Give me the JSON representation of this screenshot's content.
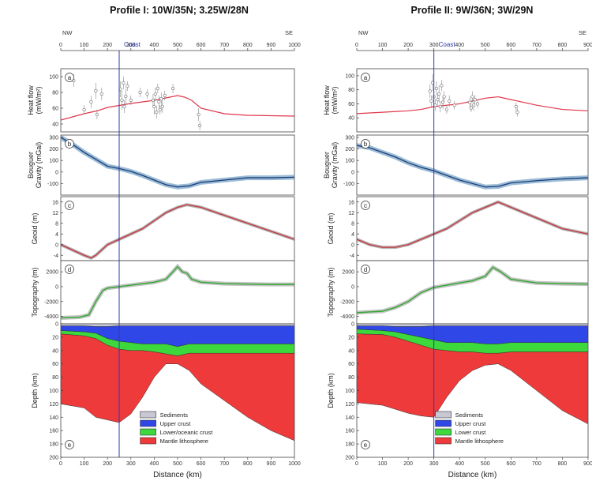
{
  "figure": {
    "colors": {
      "heat_model": "#e0364a",
      "obs": "#6b6b6b",
      "gravity_model": "#1f3d78",
      "gravity_band": "#6fa0c4",
      "geoid_model": "#c8323c",
      "topo_model": "#2ea82e",
      "coast": "#2f3aa8",
      "sediments": "#c8c8d4",
      "upper_crust": "#3047e8",
      "lower_crust": "#3cd83c",
      "mantle": "#ee3a3a"
    },
    "panel_letters": [
      "a",
      "b",
      "c",
      "d",
      "e"
    ],
    "y_labels": {
      "heat": "Heat flow\n(mW/m²)",
      "gravity": "Bouguer\nGravity (mGal)",
      "geoid": "Geoid (m)",
      "topo": "Topography (m)",
      "depth": "Depth (km)"
    },
    "x_label": "Distance (km)",
    "coast_label": "Coast"
  },
  "chart_data": [
    {
      "type": "line",
      "title": "Profile I: 10W/35N; 3.25W/28N",
      "dir_left": "NW",
      "dir_right": "SE",
      "xlim": [
        0,
        1000
      ],
      "x_ticks": [
        0,
        100,
        200,
        300,
        400,
        500,
        600,
        700,
        800,
        900,
        1000
      ],
      "coast_x": 250,
      "heat": {
        "ylim": [
          30,
          110
        ],
        "ticks": [
          40,
          60,
          80,
          100
        ],
        "model_x": [
          0,
          100,
          160,
          200,
          260,
          300,
          350,
          400,
          450,
          500,
          530,
          560,
          600,
          700,
          800,
          1000
        ],
        "model_y": [
          45,
          53,
          57,
          61,
          64,
          66,
          68,
          70,
          73,
          76,
          74,
          70,
          60,
          53,
          51,
          50
        ],
        "obs": [
          [
            55,
            95,
            8
          ],
          [
            100,
            58,
            6
          ],
          [
            130,
            68,
            8
          ],
          [
            150,
            82,
            10
          ],
          [
            155,
            52,
            6
          ],
          [
            175,
            78,
            8
          ],
          [
            255,
            84,
            10
          ],
          [
            262,
            70,
            12
          ],
          [
            268,
            92,
            8
          ],
          [
            272,
            62,
            8
          ],
          [
            278,
            75,
            10
          ],
          [
            285,
            88,
            6
          ],
          [
            300,
            70,
            6
          ],
          [
            340,
            80,
            6
          ],
          [
            370,
            78,
            6
          ],
          [
            395,
            70,
            8
          ],
          [
            400,
            62,
            10
          ],
          [
            405,
            78,
            8
          ],
          [
            410,
            55,
            8
          ],
          [
            415,
            85,
            6
          ],
          [
            420,
            68,
            8
          ],
          [
            425,
            58,
            6
          ],
          [
            430,
            72,
            8
          ],
          [
            435,
            62,
            8
          ],
          [
            445,
            76,
            6
          ],
          [
            480,
            85,
            6
          ],
          [
            590,
            52,
            8
          ],
          [
            595,
            38,
            6
          ]
        ]
      },
      "gravity": {
        "ylim": [
          -200,
          320
        ],
        "ticks": [
          -100,
          0,
          100,
          200,
          300
        ],
        "model_x": [
          0,
          50,
          100,
          150,
          200,
          250,
          300,
          350,
          400,
          450,
          500,
          550,
          600,
          700,
          800,
          900,
          1000
        ],
        "model_y": [
          300,
          240,
          170,
          110,
          50,
          30,
          5,
          -30,
          -70,
          -110,
          -130,
          -120,
          -90,
          -70,
          -50,
          -50,
          -45
        ]
      },
      "geoid": {
        "ylim": [
          -6,
          18
        ],
        "ticks": [
          -4,
          0,
          4,
          8,
          12,
          16
        ],
        "model_x": [
          0,
          50,
          100,
          130,
          150,
          200,
          250,
          300,
          350,
          400,
          450,
          500,
          540,
          600,
          700,
          800,
          900,
          1000
        ],
        "model_y": [
          0,
          -2,
          -4,
          -5,
          -4,
          0,
          2,
          4,
          6,
          9,
          12,
          14,
          15,
          14,
          11,
          8,
          5,
          2
        ]
      },
      "topo": {
        "ylim": [
          -5000,
          3500
        ],
        "ticks": [
          -4000,
          -2000,
          0,
          2000
        ],
        "model_x": [
          0,
          80,
          120,
          150,
          180,
          200,
          250,
          300,
          350,
          400,
          450,
          480,
          500,
          520,
          540,
          560,
          600,
          700,
          800,
          900,
          1000
        ],
        "model_y": [
          -4200,
          -4100,
          -3800,
          -2000,
          -500,
          -200,
          0,
          200,
          400,
          600,
          1000,
          2000,
          2700,
          2000,
          1800,
          1000,
          600,
          400,
          350,
          300,
          300
        ]
      },
      "depth": {
        "ylim": [
          200,
          0
        ],
        "ticks": [
          0,
          20,
          40,
          60,
          80,
          100,
          120,
          140,
          160,
          180,
          200
        ],
        "x": [
          0,
          100,
          150,
          200,
          250,
          300,
          350,
          400,
          450,
          500,
          550,
          600,
          700,
          800,
          900,
          1000
        ],
        "sed_base": [
          3,
          3,
          4,
          4,
          3,
          3,
          3,
          3,
          3,
          3,
          3,
          3,
          3,
          3,
          3,
          3
        ],
        "upper_base": [
          10,
          12,
          14,
          22,
          26,
          28,
          30,
          30,
          30,
          34,
          30,
          30,
          30,
          30,
          30,
          30
        ],
        "lower_base": [
          15,
          18,
          22,
          32,
          38,
          40,
          40,
          42,
          45,
          48,
          44,
          44,
          44,
          44,
          44,
          44
        ],
        "lab": [
          120,
          126,
          140,
          144,
          148,
          135,
          110,
          80,
          60,
          60,
          70,
          90,
          115,
          140,
          160,
          175
        ]
      },
      "legend": [
        "Sediments",
        "Upper crust",
        "Lower/oceanic crust",
        "Mantle lithosphere"
      ]
    },
    {
      "type": "line",
      "title": "Profile II: 9W/36N; 3W/29N",
      "dir_left": "NW",
      "dir_right": "SE",
      "xlim": [
        0,
        900
      ],
      "x_ticks": [
        0,
        100,
        200,
        300,
        400,
        500,
        600,
        700,
        800,
        900
      ],
      "coast_x": 300,
      "heat": {
        "ylim": [
          20,
          110
        ],
        "ticks": [
          40,
          60,
          80,
          100
        ],
        "model_x": [
          0,
          100,
          200,
          250,
          300,
          350,
          400,
          450,
          500,
          550,
          600,
          700,
          800,
          900
        ],
        "model_y": [
          46,
          48,
          50,
          52,
          56,
          58,
          60,
          64,
          68,
          70,
          66,
          58,
          52,
          50
        ],
        "obs": [
          [
            285,
            78,
            10
          ],
          [
            290,
            64,
            8
          ],
          [
            295,
            90,
            12
          ],
          [
            300,
            70,
            10
          ],
          [
            305,
            58,
            8
          ],
          [
            310,
            82,
            10
          ],
          [
            315,
            66,
            8
          ],
          [
            320,
            74,
            12
          ],
          [
            325,
            56,
            8
          ],
          [
            330,
            86,
            8
          ],
          [
            335,
            62,
            10
          ],
          [
            340,
            70,
            8
          ],
          [
            350,
            52,
            6
          ],
          [
            360,
            64,
            8
          ],
          [
            380,
            58,
            6
          ],
          [
            440,
            62,
            8
          ],
          [
            445,
            54,
            6
          ],
          [
            450,
            70,
            8
          ],
          [
            455,
            58,
            8
          ],
          [
            460,
            66,
            6
          ],
          [
            470,
            60,
            6
          ],
          [
            620,
            56,
            6
          ],
          [
            625,
            48,
            6
          ]
        ]
      },
      "gravity": {
        "ylim": [
          -200,
          320
        ],
        "ticks": [
          -100,
          0,
          100,
          200,
          300
        ],
        "model_x": [
          0,
          50,
          100,
          150,
          200,
          250,
          300,
          350,
          400,
          450,
          500,
          550,
          600,
          700,
          800,
          900
        ],
        "model_y": [
          230,
          210,
          170,
          130,
          80,
          40,
          10,
          -30,
          -70,
          -100,
          -130,
          -125,
          -95,
          -75,
          -60,
          -50
        ]
      },
      "geoid": {
        "ylim": [
          -6,
          18
        ],
        "ticks": [
          -4,
          0,
          4,
          8,
          12,
          16
        ],
        "model_x": [
          0,
          50,
          100,
          150,
          200,
          250,
          300,
          350,
          400,
          450,
          500,
          550,
          600,
          700,
          800,
          900
        ],
        "model_y": [
          2,
          0,
          -1,
          -1,
          0,
          2,
          4,
          6,
          9,
          12,
          14,
          16,
          14,
          10,
          6,
          4
        ]
      },
      "topo": {
        "ylim": [
          -5000,
          3500
        ],
        "ticks": [
          -4000,
          -2000,
          0,
          2000
        ],
        "model_x": [
          0,
          50,
          100,
          150,
          200,
          250,
          300,
          350,
          400,
          450,
          500,
          530,
          560,
          600,
          700,
          800,
          900
        ],
        "model_y": [
          -3500,
          -3400,
          -3300,
          -2800,
          -2000,
          -800,
          -100,
          200,
          500,
          800,
          1400,
          2600,
          2000,
          1000,
          500,
          400,
          350
        ]
      },
      "depth": {
        "ylim": [
          200,
          0
        ],
        "ticks": [
          0,
          20,
          40,
          60,
          80,
          100,
          120,
          140,
          160,
          180,
          200
        ],
        "x": [
          0,
          100,
          150,
          200,
          250,
          300,
          350,
          400,
          450,
          500,
          550,
          600,
          700,
          800,
          900
        ],
        "sed_base": [
          3,
          3,
          4,
          4,
          4,
          3,
          3,
          3,
          3,
          3,
          3,
          3,
          3,
          3,
          3
        ],
        "upper_base": [
          8,
          10,
          12,
          16,
          20,
          24,
          28,
          28,
          28,
          30,
          30,
          28,
          28,
          28,
          28
        ],
        "lower_base": [
          15,
          16,
          20,
          26,
          32,
          38,
          40,
          42,
          42,
          44,
          44,
          42,
          42,
          42,
          42
        ],
        "lab": [
          118,
          122,
          128,
          134,
          138,
          140,
          110,
          85,
          70,
          62,
          60,
          70,
          100,
          130,
          150
        ]
      },
      "legend": [
        "Sediments",
        "Upper crust",
        "Lower crust",
        "Mantle lithosphere"
      ]
    }
  ]
}
